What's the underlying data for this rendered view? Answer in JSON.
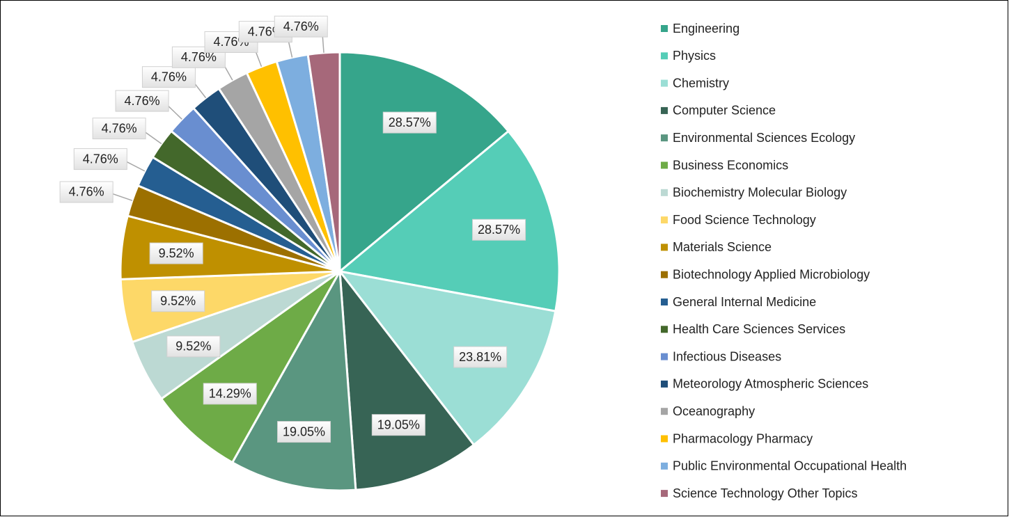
{
  "chart_data": {
    "type": "pie",
    "categories": [
      "Engineering",
      "Physics",
      "Chemistry",
      "Computer Science",
      "Environmental Sciences Ecology",
      "Business Economics",
      "Biochemistry Molecular Biology",
      "Food Science Technology",
      "Materials Science",
      "Biotechnology Applied Microbiology",
      "General Internal Medicine",
      "Health Care Sciences Services",
      "Infectious Diseases",
      "Meteorology Atmospheric Sciences",
      "Oceanography",
      "Pharmacology Pharmacy",
      "Public Environmental Occupational Health",
      "Science Technology Other Topics"
    ],
    "values": [
      28.57,
      28.57,
      23.81,
      19.05,
      19.05,
      14.29,
      9.52,
      9.52,
      9.52,
      4.76,
      4.76,
      4.76,
      4.76,
      4.76,
      4.76,
      4.76,
      4.76,
      4.76
    ],
    "value_labels": [
      "28.57%",
      "28.57%",
      "23.81%",
      "19.05%",
      "19.05%",
      "14.29%",
      "9.52%",
      "9.52%",
      "9.52%",
      "4.76%",
      "4.76%",
      "4.76%",
      "4.76%",
      "4.76%",
      "4.76%",
      "4.76%",
      "4.76%",
      "4.76%"
    ],
    "colors": [
      "#36a58b",
      "#55cdb7",
      "#9bded5",
      "#376455",
      "#5a9680",
      "#6eab47",
      "#bcd9d3",
      "#fdd868",
      "#bf9000",
      "#9c7000",
      "#255e91",
      "#43682b",
      "#698ed0",
      "#1f4e79",
      "#a5a5a5",
      "#ffc000",
      "#7daedf",
      "#a6687a"
    ],
    "legend": "right"
  }
}
